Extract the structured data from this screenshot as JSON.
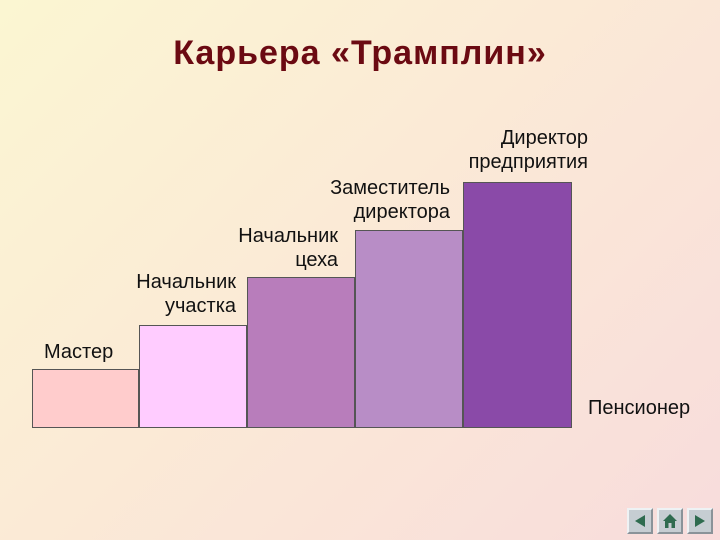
{
  "title": "Карьера «Трамплин»",
  "steps": [
    {
      "label": "Мастер",
      "color": "#ffcccc"
    },
    {
      "label": "Начальник\nучастка",
      "color": "#ffccff"
    },
    {
      "label": "Начальник\nцеха",
      "color": "#b87dbb"
    },
    {
      "label": "Заместитель\nдиректора",
      "color": "#b88dc6"
    },
    {
      "label": "Директор\nпредприятия",
      "color": "#8a4aa8"
    }
  ],
  "end_label": "Пенсионер",
  "nav": {
    "back_icon": "left-triangle-icon",
    "forward_icon": "right-triangle-icon",
    "home_icon": "home-icon"
  }
}
